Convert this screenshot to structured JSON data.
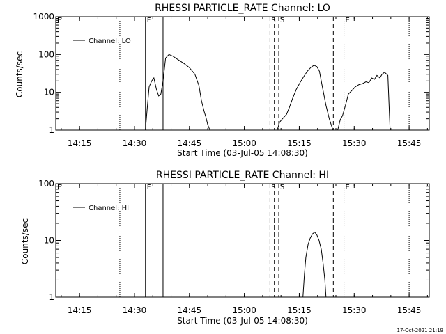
{
  "footer": {
    "date_stamp": "17-Oct-2021 21:19"
  },
  "chart_data": [
    {
      "type": "line",
      "title": "RHESSI PARTICLE_RATE Channel: LO",
      "xlabel": "Start Time (03-Jul-05 14:08:30)",
      "ylabel": "Counts/sec",
      "y_scale": "log",
      "ylim": [
        1,
        1000
      ],
      "xlim_minutes": [
        14.08,
        15.5
      ],
      "xlim": [
        "14:08:30",
        "15:50:30"
      ],
      "xticks": [
        "14:15",
        "14:30",
        "14:45",
        "15:00",
        "15:15",
        "15:30",
        "15:45"
      ],
      "yticks": [
        "1",
        "10",
        "100",
        "1000"
      ],
      "legend": [
        "Channel: LO"
      ],
      "legend_position": "top-left",
      "markers": [
        {
          "label": "E",
          "time": "14:08:30",
          "style": "dotted"
        },
        {
          "label": "",
          "time": "14:26",
          "style": "dotted"
        },
        {
          "label": "F",
          "time": "14:33",
          "style": "solid"
        },
        {
          "label": "",
          "time": "14:37.8",
          "style": "solid"
        },
        {
          "label": "S",
          "time": "15:07",
          "style": "dashed"
        },
        {
          "label": "",
          "time": "15:08.2",
          "style": "dashed"
        },
        {
          "label": "S",
          "time": "15:09.4",
          "style": "dashed"
        },
        {
          "label": "",
          "time": "15:24.3",
          "style": "dashed"
        },
        {
          "label": "E",
          "time": "15:27.2",
          "style": "dotted"
        },
        {
          "label": "",
          "time": "15:45",
          "style": "dotted"
        }
      ],
      "series": [
        {
          "name": "Channel: LO",
          "t": [
            "14:33",
            "14:33.5",
            "14:34",
            "14:34.7",
            "14:35.3",
            "14:36",
            "14:36.6",
            "14:37.2",
            "14:37.8",
            "14:38.5",
            "14:39.4",
            "14:40.5",
            "14:42",
            "14:43.5",
            "14:45",
            "14:46.5",
            "14:47.6",
            "14:48.3",
            "14:49",
            "14:49.5",
            "14:50",
            "14:50.6",
            "14:51.2"
          ],
          "values": [
            1,
            4,
            14,
            20,
            24,
            12,
            8,
            9,
            20,
            80,
            100,
            90,
            72,
            58,
            45,
            30,
            15,
            6,
            3.2,
            2.2,
            1.4,
            1.0,
            1.0
          ],
          "segment": 1
        },
        {
          "name": "Channel: LO",
          "t": [
            "15:09",
            "15:09.6",
            "15:10.2",
            "15:10.8",
            "15:11.5",
            "15:12.3",
            "15:13.2",
            "15:14.2",
            "15:15.2",
            "15:16.2",
            "15:17.2",
            "15:18.2",
            "15:19",
            "15:19.8",
            "15:20.5",
            "15:21.3",
            "15:22.3",
            "15:23.2",
            "15:24.2"
          ],
          "values": [
            1,
            1.6,
            1.9,
            2.2,
            2.6,
            4,
            7,
            12,
            18,
            26,
            36,
            46,
            52,
            48,
            36,
            14,
            4.5,
            2,
            1
          ],
          "segment": 2
        },
        {
          "name": "Channel: LO",
          "t": [
            "15:25.5",
            "15:26.2",
            "15:26.8",
            "15:27.6",
            "15:28.4",
            "15:29.3",
            "15:30.3",
            "15:31.3",
            "15:32.3",
            "15:33.2",
            "15:34",
            "15:34.8",
            "15:35.5",
            "15:36.2",
            "15:37",
            "15:37.6",
            "15:38.3",
            "15:39.2",
            "15:39.6",
            "15:39.8"
          ],
          "values": [
            1,
            1.9,
            2.4,
            4.5,
            9,
            11,
            14,
            16,
            17,
            19,
            18,
            24,
            22,
            28,
            24,
            30,
            34,
            28,
            3,
            1
          ],
          "segment": 3
        }
      ]
    },
    {
      "type": "line",
      "title": "RHESSI PARTICLE_RATE Channel: HI",
      "xlabel": "Start Time (03-Jul-05 14:08:30)",
      "ylabel": "Counts/sec",
      "y_scale": "log",
      "ylim": [
        1,
        100
      ],
      "xlim": [
        "14:08:30",
        "15:50:30"
      ],
      "xticks": [
        "14:15",
        "14:30",
        "14:45",
        "15:00",
        "15:15",
        "15:30",
        "15:45"
      ],
      "yticks": [
        "1",
        "10",
        "100"
      ],
      "legend": [
        "Channel: HI"
      ],
      "legend_position": "top-left",
      "markers": [
        {
          "label": "E",
          "time": "14:08:30",
          "style": "dotted"
        },
        {
          "label": "",
          "time": "14:26",
          "style": "dotted"
        },
        {
          "label": "F",
          "time": "14:33",
          "style": "solid"
        },
        {
          "label": "",
          "time": "14:37.8",
          "style": "solid"
        },
        {
          "label": "S",
          "time": "15:07",
          "style": "dashed"
        },
        {
          "label": "",
          "time": "15:08.2",
          "style": "dashed"
        },
        {
          "label": "S",
          "time": "15:09.4",
          "style": "dashed"
        },
        {
          "label": "",
          "time": "15:24.3",
          "style": "dashed"
        },
        {
          "label": "E",
          "time": "15:27.2",
          "style": "dotted"
        },
        {
          "label": "",
          "time": "15:45",
          "style": "dotted"
        }
      ],
      "series": [
        {
          "name": "Channel: HI",
          "t": [
            "15:16",
            "15:16.4",
            "15:16.8",
            "15:17.4",
            "15:18",
            "15:18.6",
            "15:19.2",
            "15:19.8",
            "15:20.4",
            "15:21",
            "15:21.5",
            "15:22",
            "15:22.3"
          ],
          "values": [
            1,
            2.5,
            5,
            8.5,
            11,
            13,
            14,
            12.5,
            10,
            7,
            4,
            2,
            1
          ],
          "segment": 1
        }
      ]
    }
  ]
}
